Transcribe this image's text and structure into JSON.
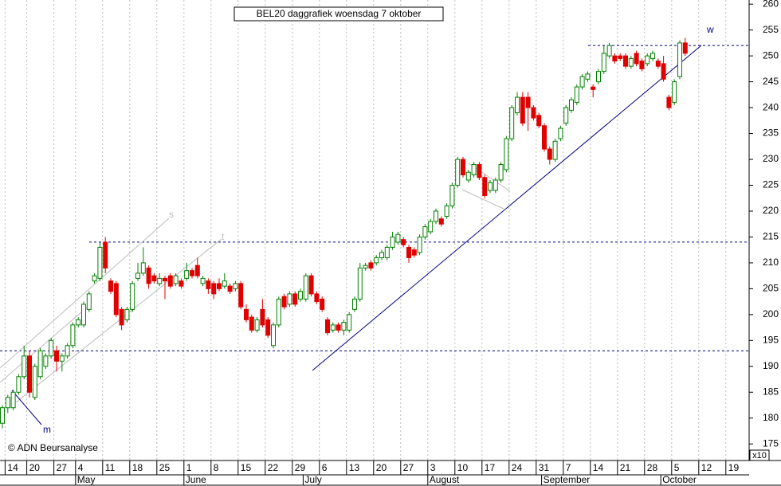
{
  "chart_data": {
    "type": "candlestick",
    "title": "BEL20 daggrafiek  woensdag 7 oktober",
    "copyright": "© ADN Beursanalyse",
    "scale_note": "x10",
    "up_color": "#008000",
    "down_color": "#e00000",
    "level_color": "#000080",
    "ylim": [
      171.8,
      260.8
    ],
    "yticks": [
      175,
      180,
      185,
      190,
      195,
      200,
      205,
      210,
      215,
      220,
      225,
      230,
      235,
      240,
      245,
      250,
      255,
      260
    ],
    "grid": true,
    "levels": [
      252,
      214,
      193
    ],
    "annotations": [
      "w",
      "m",
      "s",
      "t"
    ],
    "categories": [
      null,
      "14",
      null,
      null,
      null,
      "20",
      null,
      null,
      null,
      null,
      "27",
      null,
      null,
      null,
      "4",
      null,
      null,
      null,
      null,
      "11",
      null,
      null,
      null,
      null,
      "18",
      null,
      null,
      null,
      null,
      "25",
      null,
      null,
      null,
      null,
      "1",
      null,
      null,
      null,
      null,
      "8",
      null,
      null,
      null,
      null,
      "15",
      null,
      null,
      null,
      null,
      "22",
      null,
      null,
      null,
      null,
      "29",
      null,
      null,
      null,
      null,
      "6",
      null,
      null,
      null,
      null,
      "13",
      null,
      null,
      null,
      null,
      "20",
      null,
      null,
      null,
      null,
      "27",
      null,
      null,
      null,
      null,
      "3",
      null,
      null,
      null,
      null,
      "10",
      null,
      null,
      null,
      null,
      "17",
      null,
      null,
      null,
      null,
      "24",
      null,
      null,
      null,
      null,
      "31",
      null,
      null,
      null,
      null,
      "7",
      null,
      null,
      null,
      null,
      "14",
      null,
      null,
      null,
      null,
      "21",
      null,
      null,
      null,
      null,
      "28",
      null,
      null,
      null,
      null,
      "5",
      null,
      null,
      null,
      null,
      "12",
      null,
      null,
      null,
      null,
      "19",
      null,
      null,
      null
    ],
    "months": [
      null,
      null,
      null,
      null,
      null,
      null,
      null,
      null,
      null,
      null,
      null,
      null,
      null,
      null,
      "May",
      null,
      null,
      null,
      null,
      null,
      null,
      null,
      null,
      null,
      null,
      null,
      null,
      null,
      null,
      null,
      null,
      null,
      null,
      null,
      "June",
      null,
      null,
      null,
      null,
      null,
      null,
      null,
      null,
      null,
      null,
      null,
      null,
      null,
      null,
      null,
      null,
      null,
      null,
      null,
      null,
      null,
      "July",
      null,
      null,
      null,
      null,
      null,
      null,
      null,
      null,
      null,
      null,
      null,
      null,
      null,
      null,
      null,
      null,
      null,
      null,
      null,
      null,
      null,
      null,
      "August",
      null,
      null,
      null,
      null,
      null,
      null,
      null,
      null,
      null,
      null,
      null,
      null,
      null,
      null,
      null,
      null,
      null,
      null,
      null,
      null,
      "September",
      null,
      null,
      null,
      null,
      null,
      null,
      null,
      null,
      null,
      null,
      null,
      null,
      null,
      null,
      null,
      null,
      null,
      null,
      null,
      null,
      null,
      "October",
      null,
      null,
      null,
      null,
      null,
      null,
      null,
      null,
      null,
      null,
      null,
      null,
      null,
      null,
      null
    ],
    "open": [
      179,
      182,
      182,
      185,
      188,
      192,
      184,
      188,
      190,
      192,
      193,
      191,
      192,
      194,
      198,
      198,
      201,
      206.5,
      207,
      214,
      206.5,
      206,
      201,
      199,
      201,
      207,
      208,
      209,
      207.5,
      206,
      207,
      207.5,
      206,
      206.5,
      207,
      208.5,
      209.5,
      206,
      206.5,
      206,
      206,
      205.5,
      205.5,
      205,
      206,
      201,
      199.5,
      197,
      201,
      199,
      194,
      198,
      203.5,
      202,
      204,
      203,
      203,
      207.5,
      204,
      203,
      199,
      197,
      198,
      197,
      197,
      201,
      203,
      209,
      210,
      210,
      211,
      211,
      213,
      214,
      214.5,
      213,
      212.5,
      212,
      215,
      216,
      218,
      218.5,
      219,
      221,
      225,
      230,
      226,
      227,
      229,
      226.5,
      224,
      224,
      226,
      228,
      234,
      239,
      242,
      242,
      240,
      238.5,
      236.5,
      232,
      230,
      234,
      237,
      239.5,
      241,
      244,
      245.5,
      244,
      245,
      247,
      250,
      250,
      250,
      250,
      248,
      250.5,
      249,
      248.5,
      249.5,
      249,
      248.5,
      242,
      241,
      246,
      252.5,
      null,
      null,
      null,
      null,
      null,
      null,
      null,
      null,
      null,
      null,
      null
    ],
    "high": [
      182.5,
      184.5,
      185.5,
      188.5,
      194,
      193,
      190.5,
      193.5,
      192.5,
      195.5,
      194,
      192.5,
      194.5,
      198.5,
      199.5,
      202.5,
      204.5,
      208,
      214,
      215,
      207,
      206.5,
      201.5,
      201.5,
      206.5,
      210,
      213,
      209.5,
      208,
      208,
      207.5,
      208,
      208,
      207,
      210,
      209,
      211,
      207.5,
      207,
      206.5,
      207,
      208,
      206,
      206.5,
      206.5,
      202,
      200,
      199.5,
      203,
      199.5,
      198.5,
      203.5,
      204,
      204.5,
      204.5,
      205,
      208,
      208,
      204.5,
      203.5,
      199.5,
      198.5,
      198.5,
      199,
      200.5,
      203.5,
      210,
      210,
      210.5,
      211.5,
      212.5,
      213.5,
      216,
      216,
      215,
      213.5,
      213,
      215.5,
      217.5,
      218.5,
      220.5,
      219,
      221.5,
      225.5,
      230.5,
      230.5,
      228,
      229.5,
      229.5,
      227,
      226,
      226.5,
      229.5,
      234.5,
      240.5,
      243,
      243,
      243,
      240.5,
      239,
      237,
      232.5,
      234,
      236.5,
      240.5,
      242,
      244.5,
      246.5,
      247,
      244.5,
      247.5,
      252,
      252.5,
      250.5,
      250.5,
      250.5,
      250,
      251,
      249.5,
      250.5,
      251,
      249.5,
      250,
      242.5,
      245.5,
      253,
      253.5,
      null,
      null,
      null,
      null,
      null,
      null,
      null,
      null,
      null,
      null,
      null
    ],
    "low": [
      178,
      181,
      181.5,
      184.5,
      187.5,
      184,
      183.5,
      187.5,
      189.5,
      191.5,
      189,
      189,
      191.5,
      193.5,
      197.5,
      197.5,
      200.5,
      206,
      206.5,
      208,
      204,
      199.5,
      197,
      198.5,
      200.5,
      206.5,
      207.5,
      205,
      206,
      205.5,
      203,
      205,
      205.5,
      205,
      206.5,
      207,
      207,
      205.5,
      204,
      203,
      204.5,
      205,
      204,
      204.5,
      201,
      198.5,
      196.5,
      196.5,
      197.5,
      195.5,
      193.5,
      197.5,
      201,
      201.5,
      201.5,
      202.5,
      202.5,
      203.5,
      202,
      200.5,
      196,
      196.5,
      196.5,
      196,
      196.5,
      200.5,
      202.5,
      208.5,
      208.5,
      209.5,
      210.5,
      210.5,
      212.5,
      213.5,
      213,
      210,
      211,
      211.5,
      214.5,
      215.5,
      217.5,
      217,
      218.5,
      220.5,
      224.5,
      226.5,
      225.5,
      226.5,
      226,
      222.5,
      223.5,
      223.5,
      225.5,
      227.5,
      233.5,
      238.5,
      236.5,
      235.5,
      237.5,
      236,
      231.5,
      229,
      229.5,
      233.5,
      236.5,
      239,
      240.5,
      243.5,
      245,
      242,
      244.5,
      246.5,
      249.5,
      248.5,
      249,
      247.5,
      247.5,
      248,
      247,
      248,
      249,
      247.5,
      245,
      239.5,
      240.5,
      245.5,
      250,
      null,
      null,
      null,
      null,
      null,
      null,
      null,
      null,
      null,
      null,
      null
    ],
    "close": [
      182,
      184,
      185,
      188,
      192,
      185,
      190,
      193,
      192,
      195,
      191,
      192,
      194,
      198,
      199,
      202,
      204,
      207.5,
      213,
      209,
      204.5,
      200,
      198,
      201,
      206,
      208,
      210,
      206,
      206.5,
      207,
      206.5,
      205.5,
      207.5,
      205.5,
      208.5,
      207.5,
      207.5,
      207,
      205,
      204,
      205,
      206.5,
      204.5,
      206,
      201.5,
      199,
      197,
      199,
      198,
      196,
      198,
      203,
      201.5,
      204,
      202,
      204.5,
      207.5,
      204,
      202.5,
      201,
      196.5,
      198,
      197,
      198.5,
      200,
      203,
      209,
      209.5,
      209,
      211,
      212,
      213,
      215,
      215.5,
      213.5,
      211,
      211.5,
      215,
      217,
      218,
      220,
      217.5,
      221,
      225,
      230,
      227,
      227.5,
      229,
      226.5,
      223,
      225.5,
      226,
      229,
      234,
      240,
      242,
      237,
      240,
      238,
      236.5,
      232,
      230,
      233.5,
      236,
      240,
      241.5,
      244,
      246,
      246.5,
      243.5,
      247,
      250.5,
      252,
      249,
      249.5,
      248,
      249.5,
      248.5,
      247.5,
      250,
      250.5,
      248,
      245.5,
      240,
      245,
      252.5,
      250.5,
      null,
      null,
      null,
      null,
      null,
      null,
      null,
      null,
      null,
      null,
      null
    ]
  }
}
